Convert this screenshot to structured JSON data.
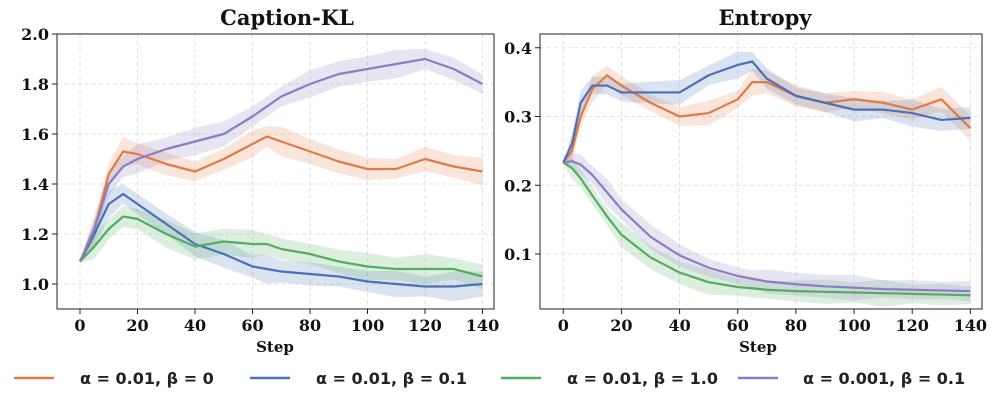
{
  "chart_data": [
    {
      "type": "line",
      "title": "Caption-KL",
      "xlabel": "Step",
      "ylabel": "",
      "xlim": [
        -8,
        144
      ],
      "ylim": [
        0.9,
        2.0
      ],
      "xticks": [
        0,
        20,
        40,
        60,
        80,
        100,
        120,
        140
      ],
      "yticks": [
        1.0,
        1.2,
        1.4,
        1.6,
        1.8,
        2.0
      ],
      "ytick_labels": [
        "1.0",
        "1.2",
        "1.4",
        "1.6",
        "1.8",
        "2.0"
      ],
      "grid": true,
      "x": [
        0,
        5,
        10,
        15,
        20,
        30,
        40,
        50,
        60,
        65,
        70,
        80,
        90,
        100,
        110,
        120,
        130,
        140
      ],
      "series": [
        {
          "name": "α = 0.01, β = 0",
          "color": "#e07b45",
          "values": [
            1.09,
            1.22,
            1.44,
            1.53,
            1.52,
            1.48,
            1.45,
            1.5,
            1.56,
            1.59,
            1.57,
            1.53,
            1.49,
            1.46,
            1.46,
            1.5,
            1.47,
            1.45
          ]
        },
        {
          "name": "α = 0.01, β = 0.1",
          "color": "#4a71b8",
          "values": [
            1.09,
            1.2,
            1.32,
            1.36,
            1.32,
            1.24,
            1.16,
            1.12,
            1.07,
            1.06,
            1.05,
            1.04,
            1.03,
            1.01,
            1.0,
            0.99,
            0.99,
            1.0
          ]
        },
        {
          "name": "α = 0.01, β = 1.0",
          "color": "#52ad5f",
          "values": [
            1.09,
            1.15,
            1.22,
            1.27,
            1.26,
            1.2,
            1.15,
            1.17,
            1.16,
            1.16,
            1.14,
            1.12,
            1.09,
            1.07,
            1.06,
            1.06,
            1.06,
            1.03
          ]
        },
        {
          "name": "α = 0.001, β = 0.1",
          "color": "#8c7cc4",
          "values": [
            1.09,
            1.22,
            1.4,
            1.47,
            1.5,
            1.54,
            1.57,
            1.6,
            1.67,
            1.71,
            1.75,
            1.8,
            1.84,
            1.86,
            1.88,
            1.9,
            1.86,
            1.8
          ]
        }
      ]
    },
    {
      "type": "line",
      "title": "Entropy",
      "xlabel": "Step",
      "ylabel": "",
      "xlim": [
        -8,
        144
      ],
      "ylim": [
        0.02,
        0.42
      ],
      "xticks": [
        0,
        20,
        40,
        60,
        80,
        100,
        120,
        140
      ],
      "yticks": [
        0.1,
        0.2,
        0.3,
        0.4
      ],
      "ytick_labels": [
        "0.1",
        "0.2",
        "0.3",
        "0.4"
      ],
      "grid": true,
      "x": [
        0,
        3,
        6,
        10,
        15,
        20,
        30,
        40,
        50,
        60,
        65,
        70,
        80,
        90,
        100,
        110,
        120,
        130,
        140
      ],
      "series": [
        {
          "name": "α = 0.01, β = 0",
          "color": "#e07b45",
          "values": [
            0.233,
            0.25,
            0.3,
            0.34,
            0.36,
            0.345,
            0.32,
            0.3,
            0.305,
            0.325,
            0.35,
            0.35,
            0.33,
            0.32,
            0.325,
            0.32,
            0.31,
            0.325,
            0.283
          ]
        },
        {
          "name": "α = 0.01, β = 0.1",
          "color": "#4a71b8",
          "values": [
            0.233,
            0.26,
            0.32,
            0.345,
            0.345,
            0.335,
            0.335,
            0.335,
            0.36,
            0.375,
            0.38,
            0.355,
            0.33,
            0.32,
            0.31,
            0.31,
            0.305,
            0.295,
            0.298
          ]
        },
        {
          "name": "α = 0.01, β = 1.0",
          "color": "#52ad5f",
          "values": [
            0.233,
            0.225,
            0.21,
            0.185,
            0.155,
            0.128,
            0.095,
            0.073,
            0.059,
            0.052,
            0.05,
            0.048,
            0.046,
            0.045,
            0.044,
            0.043,
            0.042,
            0.041,
            0.04
          ]
        },
        {
          "name": "α = 0.001, β = 0.1",
          "color": "#8c7cc4",
          "values": [
            0.233,
            0.235,
            0.23,
            0.215,
            0.19,
            0.165,
            0.125,
            0.098,
            0.08,
            0.068,
            0.064,
            0.06,
            0.056,
            0.053,
            0.051,
            0.049,
            0.048,
            0.047,
            0.046
          ]
        }
      ]
    }
  ],
  "legend": [
    {
      "label": "α = 0.01,  β = 0",
      "color": "#e07b45"
    },
    {
      "label": "α = 0.01,  β = 0.1",
      "color": "#4a71b8"
    },
    {
      "label": "α = 0.01,  β = 1.0",
      "color": "#52ad5f"
    },
    {
      "label": "α = 0.001,  β = 0.1",
      "color": "#8c7cc4"
    }
  ]
}
